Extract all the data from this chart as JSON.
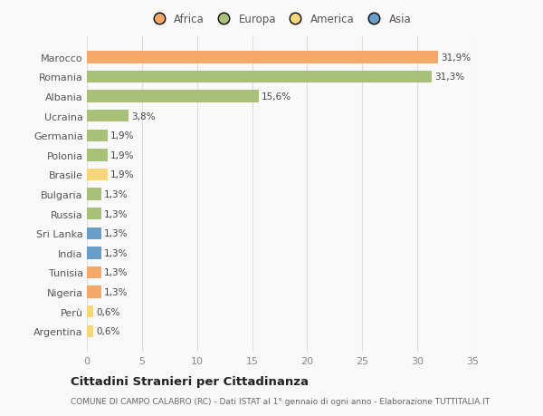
{
  "categories": [
    "Marocco",
    "Romania",
    "Albania",
    "Ucraina",
    "Germania",
    "Polonia",
    "Brasile",
    "Bulgaria",
    "Russia",
    "Sri Lanka",
    "India",
    "Tunisia",
    "Nigeria",
    "Perù",
    "Argentina"
  ],
  "values": [
    31.9,
    31.3,
    15.6,
    3.8,
    1.9,
    1.9,
    1.9,
    1.3,
    1.3,
    1.3,
    1.3,
    1.3,
    1.3,
    0.6,
    0.6
  ],
  "labels": [
    "31,9%",
    "31,3%",
    "15,6%",
    "3,8%",
    "1,9%",
    "1,9%",
    "1,9%",
    "1,3%",
    "1,3%",
    "1,3%",
    "1,3%",
    "1,3%",
    "1,3%",
    "0,6%",
    "0,6%"
  ],
  "colors": [
    "#F4A96A",
    "#A8C07A",
    "#A8C07A",
    "#A8C07A",
    "#A8C07A",
    "#A8C07A",
    "#F5D77A",
    "#A8C07A",
    "#A8C07A",
    "#6B9EC7",
    "#6B9EC7",
    "#F4A96A",
    "#F4A96A",
    "#F5D77A",
    "#F5D77A"
  ],
  "legend": [
    {
      "label": "Africa",
      "color": "#F4A96A"
    },
    {
      "label": "Europa",
      "color": "#A8C07A"
    },
    {
      "label": "America",
      "color": "#F5D77A"
    },
    {
      "label": "Asia",
      "color": "#6B9EC7"
    }
  ],
  "xlim": [
    0,
    35
  ],
  "xticks": [
    0,
    5,
    10,
    15,
    20,
    25,
    30,
    35
  ],
  "title": "Cittadini Stranieri per Cittadinanza",
  "subtitle": "COMUNE DI CAMPO CALABRO (RC) - Dati ISTAT al 1° gennaio di ogni anno - Elaborazione TUTTITALIA.IT",
  "background_color": "#f9f9f9",
  "grid_color": "#dddddd"
}
